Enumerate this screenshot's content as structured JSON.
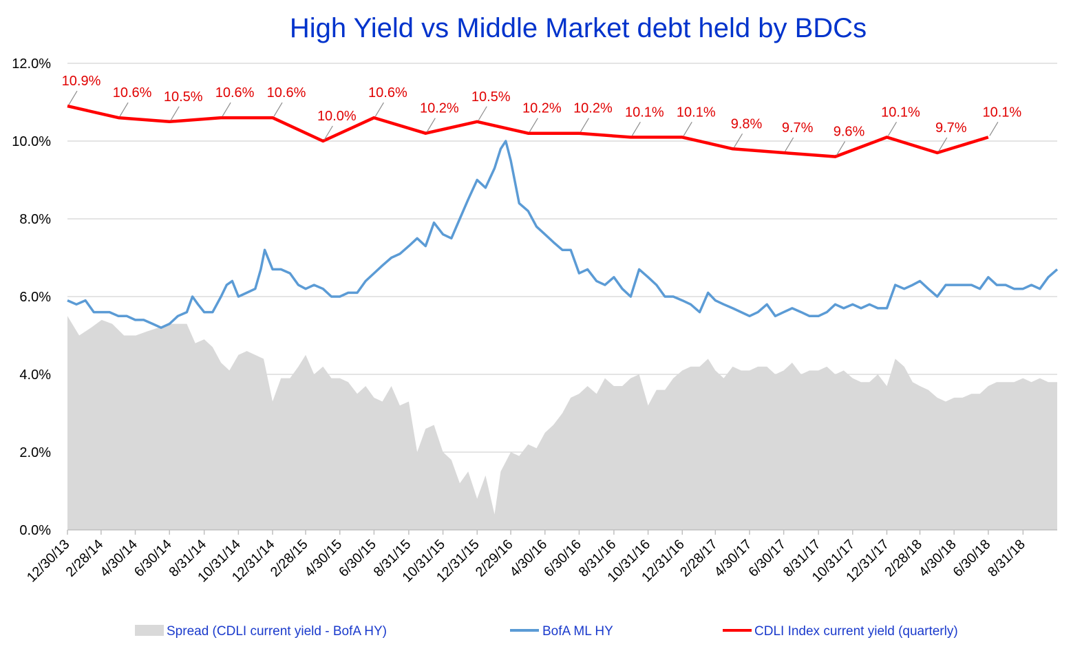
{
  "chart_data": {
    "type": "line",
    "title": "High Yield  vs  Middle Market debt held by BDCs",
    "y_axis": {
      "min": 0,
      "max": 12,
      "ticks": [
        "0.0%",
        "2.0%",
        "4.0%",
        "6.0%",
        "8.0%",
        "10.0%",
        "12.0%"
      ],
      "tick_values": [
        0,
        2,
        4,
        6,
        8,
        10,
        12
      ],
      "grid": true
    },
    "x_axis": {
      "range": [
        "2013-12-30",
        "2018-10-31"
      ],
      "tick_dates": [
        "2013-12-30",
        "2014-02-28",
        "2014-04-30",
        "2014-06-30",
        "2014-08-31",
        "2014-10-31",
        "2014-12-31",
        "2015-02-28",
        "2015-04-30",
        "2015-06-30",
        "2015-08-31",
        "2015-10-31",
        "2015-12-31",
        "2016-02-29",
        "2016-04-30",
        "2016-06-30",
        "2016-08-31",
        "2016-10-31",
        "2016-12-31",
        "2017-02-28",
        "2017-04-30",
        "2017-06-30",
        "2017-08-31",
        "2017-10-31",
        "2017-12-31",
        "2018-02-28",
        "2018-04-30",
        "2018-06-30",
        "2018-08-31"
      ],
      "tick_labels": [
        "12/30/13",
        "2/28/14",
        "4/30/14",
        "6/30/14",
        "8/31/14",
        "10/31/14",
        "12/31/14",
        "2/28/15",
        "4/30/15",
        "6/30/15",
        "8/31/15",
        "10/31/15",
        "12/31/15",
        "2/29/16",
        "4/30/16",
        "6/30/16",
        "8/31/16",
        "10/31/16",
        "12/31/16",
        "2/28/17",
        "4/30/17",
        "6/30/17",
        "8/31/17",
        "10/31/17",
        "12/31/17",
        "2/28/18",
        "4/30/18",
        "6/30/18",
        "8/31/18"
      ]
    },
    "legend_position": "bottom",
    "series": [
      {
        "name": "Spread (CDLI current yield - BofA HY)",
        "type": "area",
        "color": "#d9d9d9",
        "x": [
          "2013-12-30",
          "2014-01-20",
          "2014-02-10",
          "2014-03-01",
          "2014-03-20",
          "2014-04-10",
          "2014-05-01",
          "2014-05-20",
          "2014-06-10",
          "2014-06-30",
          "2014-07-15",
          "2014-07-31",
          "2014-08-15",
          "2014-08-31",
          "2014-09-15",
          "2014-09-30",
          "2014-10-15",
          "2014-10-31",
          "2014-11-15",
          "2014-11-30",
          "2014-12-15",
          "2014-12-31",
          "2015-01-15",
          "2015-01-31",
          "2015-02-15",
          "2015-02-28",
          "2015-03-15",
          "2015-03-31",
          "2015-04-15",
          "2015-04-30",
          "2015-05-15",
          "2015-05-31",
          "2015-06-15",
          "2015-06-30",
          "2015-07-15",
          "2015-07-31",
          "2015-08-15",
          "2015-08-31",
          "2015-09-15",
          "2015-09-30",
          "2015-10-15",
          "2015-10-31",
          "2015-11-15",
          "2015-11-30",
          "2015-12-15",
          "2015-12-31",
          "2016-01-15",
          "2016-01-31",
          "2016-02-11",
          "2016-02-29",
          "2016-03-15",
          "2016-03-31",
          "2016-04-15",
          "2016-04-30",
          "2016-05-15",
          "2016-05-31",
          "2016-06-15",
          "2016-06-30",
          "2016-07-15",
          "2016-07-31",
          "2016-08-15",
          "2016-08-31",
          "2016-09-15",
          "2016-09-30",
          "2016-10-15",
          "2016-10-31",
          "2016-11-15",
          "2016-11-30",
          "2016-12-15",
          "2016-12-31",
          "2017-01-15",
          "2017-01-31",
          "2017-02-15",
          "2017-02-28",
          "2017-03-15",
          "2017-03-31",
          "2017-04-15",
          "2017-04-30",
          "2017-05-15",
          "2017-05-31",
          "2017-06-15",
          "2017-06-30",
          "2017-07-15",
          "2017-07-31",
          "2017-08-15",
          "2017-08-31",
          "2017-09-15",
          "2017-09-30",
          "2017-10-15",
          "2017-10-31",
          "2017-11-15",
          "2017-11-30",
          "2017-12-15",
          "2017-12-31",
          "2018-01-15",
          "2018-01-31",
          "2018-02-15",
          "2018-02-28",
          "2018-03-15",
          "2018-03-31",
          "2018-04-15",
          "2018-04-30",
          "2018-05-15",
          "2018-05-31",
          "2018-06-15",
          "2018-06-30",
          "2018-07-15",
          "2018-07-31",
          "2018-08-15",
          "2018-08-31",
          "2018-09-15",
          "2018-09-30",
          "2018-10-15",
          "2018-10-31"
        ],
        "y": [
          5.5,
          5.0,
          5.2,
          5.4,
          5.3,
          5.0,
          5.0,
          5.1,
          5.2,
          5.3,
          5.3,
          5.3,
          4.8,
          4.9,
          4.7,
          4.3,
          4.1,
          4.5,
          4.6,
          4.5,
          4.4,
          3.3,
          3.9,
          3.9,
          4.2,
          4.5,
          4.0,
          4.2,
          3.9,
          3.9,
          3.8,
          3.5,
          3.7,
          3.4,
          3.3,
          3.7,
          3.2,
          3.3,
          2.0,
          2.6,
          2.7,
          2.0,
          1.8,
          1.2,
          1.5,
          0.8,
          1.4,
          0.4,
          1.5,
          2.0,
          1.9,
          2.2,
          2.1,
          2.5,
          2.7,
          3.0,
          3.4,
          3.5,
          3.7,
          3.5,
          3.9,
          3.7,
          3.7,
          3.9,
          4.0,
          3.2,
          3.6,
          3.6,
          3.9,
          4.1,
          4.2,
          4.2,
          4.4,
          4.1,
          3.9,
          4.2,
          4.1,
          4.1,
          4.2,
          4.2,
          4.0,
          4.1,
          4.3,
          4.0,
          4.1,
          4.1,
          4.2,
          4.0,
          4.1,
          3.9,
          3.8,
          3.8,
          4.0,
          3.7,
          4.4,
          4.2,
          3.8,
          3.7,
          3.6,
          3.4,
          3.3,
          3.4,
          3.4,
          3.5,
          3.5,
          3.7,
          3.8,
          3.8,
          3.8,
          3.9,
          3.8,
          3.9,
          3.8,
          3.8
        ]
      },
      {
        "name": "BofA ML HY",
        "type": "line",
        "color": "#5b9bd5",
        "x": [
          "2013-12-30",
          "2014-01-15",
          "2014-01-31",
          "2014-02-15",
          "2014-02-28",
          "2014-03-15",
          "2014-03-31",
          "2014-04-15",
          "2014-04-30",
          "2014-05-15",
          "2014-05-31",
          "2014-06-15",
          "2014-06-30",
          "2014-07-15",
          "2014-07-31",
          "2014-08-10",
          "2014-08-20",
          "2014-08-31",
          "2014-09-15",
          "2014-09-30",
          "2014-10-10",
          "2014-10-20",
          "2014-10-31",
          "2014-11-15",
          "2014-11-30",
          "2014-12-10",
          "2014-12-17",
          "2014-12-31",
          "2015-01-15",
          "2015-01-31",
          "2015-02-15",
          "2015-02-28",
          "2015-03-15",
          "2015-03-31",
          "2015-04-15",
          "2015-04-30",
          "2015-05-15",
          "2015-05-31",
          "2015-06-15",
          "2015-06-30",
          "2015-07-15",
          "2015-07-31",
          "2015-08-15",
          "2015-08-31",
          "2015-09-15",
          "2015-09-30",
          "2015-10-15",
          "2015-10-31",
          "2015-11-15",
          "2015-11-30",
          "2015-12-15",
          "2015-12-31",
          "2016-01-15",
          "2016-01-31",
          "2016-02-11",
          "2016-02-20",
          "2016-02-29",
          "2016-03-15",
          "2016-03-31",
          "2016-04-15",
          "2016-04-30",
          "2016-05-15",
          "2016-05-31",
          "2016-06-15",
          "2016-06-30",
          "2016-07-15",
          "2016-07-31",
          "2016-08-15",
          "2016-08-31",
          "2016-09-15",
          "2016-09-30",
          "2016-10-15",
          "2016-10-31",
          "2016-11-15",
          "2016-11-30",
          "2016-12-15",
          "2016-12-31",
          "2017-01-15",
          "2017-01-31",
          "2017-02-15",
          "2017-02-28",
          "2017-03-15",
          "2017-03-31",
          "2017-04-15",
          "2017-04-30",
          "2017-05-15",
          "2017-05-31",
          "2017-06-15",
          "2017-06-30",
          "2017-07-15",
          "2017-07-31",
          "2017-08-15",
          "2017-08-31",
          "2017-09-15",
          "2017-09-30",
          "2017-10-15",
          "2017-10-31",
          "2017-11-15",
          "2017-11-30",
          "2017-12-15",
          "2017-12-31",
          "2018-01-15",
          "2018-01-31",
          "2018-02-15",
          "2018-02-28",
          "2018-03-15",
          "2018-03-31",
          "2018-04-15",
          "2018-04-30",
          "2018-05-15",
          "2018-05-31",
          "2018-06-15",
          "2018-06-30",
          "2018-07-15",
          "2018-07-31",
          "2018-08-15",
          "2018-08-31",
          "2018-09-15",
          "2018-09-30",
          "2018-10-15",
          "2018-10-31"
        ],
        "y": [
          5.9,
          5.8,
          5.9,
          5.6,
          5.6,
          5.6,
          5.5,
          5.5,
          5.4,
          5.4,
          5.3,
          5.2,
          5.3,
          5.5,
          5.6,
          6.0,
          5.8,
          5.6,
          5.6,
          6.0,
          6.3,
          6.4,
          6.0,
          6.1,
          6.2,
          6.7,
          7.2,
          6.7,
          6.7,
          6.6,
          6.3,
          6.2,
          6.3,
          6.2,
          6.0,
          6.0,
          6.1,
          6.1,
          6.4,
          6.6,
          6.8,
          7.0,
          7.1,
          7.3,
          7.5,
          7.3,
          7.9,
          7.6,
          7.5,
          8.0,
          8.5,
          9.0,
          8.8,
          9.3,
          9.8,
          10.0,
          9.5,
          8.4,
          8.2,
          7.8,
          7.6,
          7.4,
          7.2,
          7.2,
          6.6,
          6.7,
          6.4,
          6.3,
          6.5,
          6.2,
          6.0,
          6.7,
          6.5,
          6.3,
          6.0,
          6.0,
          5.9,
          5.8,
          5.6,
          6.1,
          5.9,
          5.8,
          5.7,
          5.6,
          5.5,
          5.6,
          5.8,
          5.5,
          5.6,
          5.7,
          5.6,
          5.5,
          5.5,
          5.6,
          5.8,
          5.7,
          5.8,
          5.7,
          5.8,
          5.7,
          5.7,
          6.3,
          6.2,
          6.3,
          6.4,
          6.2,
          6.0,
          6.3,
          6.3,
          6.3,
          6.3,
          6.2,
          6.5,
          6.3,
          6.3,
          6.2,
          6.2,
          6.3,
          6.2,
          6.5,
          6.7
        ]
      },
      {
        "name": "CDLI Index current yield (quarterly)",
        "type": "line",
        "color": "#ff0000",
        "x": [
          "2013-12-30",
          "2014-03-31",
          "2014-06-30",
          "2014-09-30",
          "2014-12-31",
          "2015-03-31",
          "2015-06-30",
          "2015-09-30",
          "2015-12-31",
          "2016-03-31",
          "2016-06-30",
          "2016-09-30",
          "2016-12-31",
          "2017-03-31",
          "2017-06-30",
          "2017-09-30",
          "2017-12-31",
          "2018-03-31",
          "2018-06-30"
        ],
        "y": [
          10.9,
          10.6,
          10.5,
          10.6,
          10.6,
          10.0,
          10.6,
          10.2,
          10.5,
          10.2,
          10.2,
          10.1,
          10.1,
          9.8,
          9.7,
          9.6,
          10.1,
          9.7,
          10.1
        ],
        "labels": [
          "10.9%",
          "10.6%",
          "10.5%",
          "10.6%",
          "10.6%",
          "10.0%",
          "10.6%",
          "10.2%",
          "10.5%",
          "10.2%",
          "10.2%",
          "10.1%",
          "10.1%",
          "9.8%",
          "9.7%",
          "9.6%",
          "10.1%",
          "9.7%",
          "10.1%"
        ]
      }
    ]
  }
}
